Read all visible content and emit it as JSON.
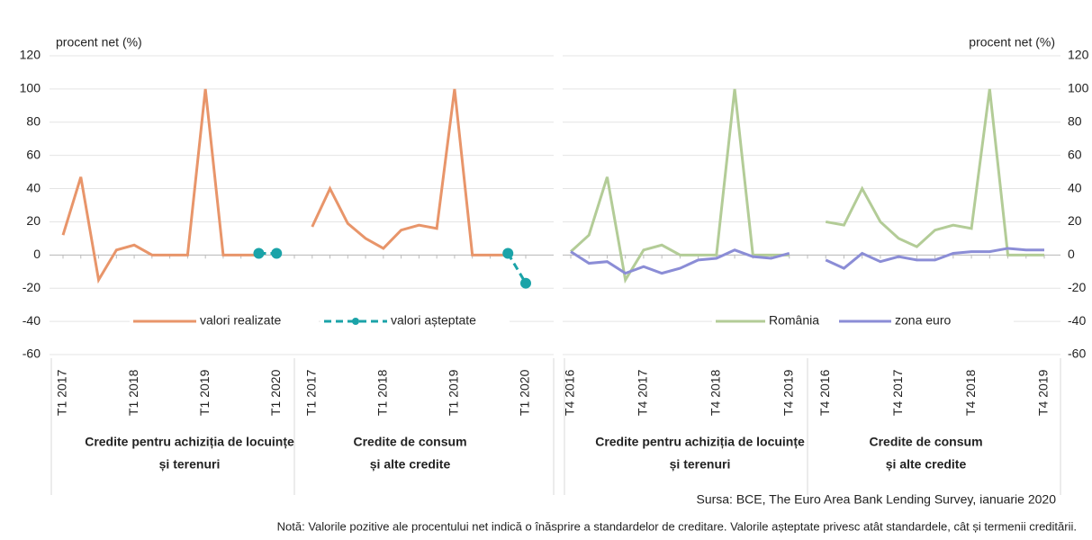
{
  "chart_data": [
    {
      "type": "line",
      "y_label": "procent net (%)",
      "categories": [
        "T1 2017",
        null,
        null,
        null,
        "T1 2018",
        null,
        null,
        null,
        "T1 2019",
        null,
        null,
        null,
        "T1 2020",
        null,
        "T1 2017",
        null,
        null,
        null,
        "T1 2018",
        null,
        null,
        null,
        "T1 2019",
        null,
        null,
        null,
        "T1 2020"
      ],
      "groups": [
        {
          "lines": [
            "Credite pentru achiziția de locuințe",
            "și terenuri"
          ]
        },
        {
          "lines": [
            "Credite de consum",
            "și alte credite"
          ]
        }
      ],
      "series": [
        {
          "name": "valori realizate",
          "color": "#e8956a",
          "dashed": false,
          "markers": false,
          "values": [
            12,
            47,
            -15,
            3,
            6,
            0,
            0,
            0,
            100,
            0,
            0,
            0,
            null,
            null,
            17,
            40,
            19,
            10,
            4,
            15,
            18,
            16,
            100,
            0,
            0,
            0,
            null
          ]
        },
        {
          "name": "valori așteptate",
          "color": "#1ba3a8",
          "dashed": true,
          "markers": true,
          "values": [
            null,
            null,
            null,
            null,
            null,
            null,
            null,
            null,
            null,
            null,
            null,
            1,
            1,
            null,
            null,
            null,
            null,
            null,
            null,
            null,
            null,
            null,
            null,
            null,
            null,
            1,
            -17
          ]
        }
      ],
      "ylim": [
        -60,
        120
      ],
      "yticks": [
        -60,
        -40,
        -20,
        0,
        20,
        40,
        60,
        80,
        100,
        120
      ],
      "y_axis_side": "left",
      "grid": true
    },
    {
      "type": "line",
      "y_label": "procent net (%)",
      "categories": [
        "T4 2016",
        null,
        null,
        null,
        "T4 2017",
        null,
        null,
        null,
        "T4 2018",
        null,
        null,
        null,
        "T4 2019",
        null,
        "T4 2016",
        null,
        null,
        null,
        "T4 2017",
        null,
        null,
        null,
        "T4 2018",
        null,
        null,
        null,
        "T4 2019"
      ],
      "groups": [
        {
          "lines": [
            "Credite pentru achiziția de locuințe",
            "și terenuri"
          ]
        },
        {
          "lines": [
            "Credite de consum",
            "și alte credite"
          ]
        }
      ],
      "series": [
        {
          "name": "România",
          "color": "#b3cc97",
          "dashed": false,
          "markers": false,
          "values": [
            2,
            12,
            47,
            -15,
            3,
            6,
            0,
            0,
            0,
            100,
            0,
            0,
            0,
            null,
            20,
            18,
            40,
            20,
            10,
            5,
            15,
            18,
            16,
            100,
            0,
            0,
            0
          ]
        },
        {
          "name": "zona euro",
          "color": "#8b8dd6",
          "dashed": false,
          "markers": false,
          "values": [
            2,
            -5,
            -4,
            -11,
            -7,
            -11,
            -8,
            -3,
            -2,
            3,
            -1,
            -2,
            1,
            null,
            -3,
            -8,
            1,
            -4,
            -1,
            -3,
            -3,
            1,
            2,
            2,
            4,
            3,
            3
          ]
        }
      ],
      "ylim": [
        -60,
        120
      ],
      "yticks": [
        -60,
        -40,
        -20,
        0,
        20,
        40,
        60,
        80,
        100,
        120
      ],
      "y_axis_side": "right",
      "grid": true
    }
  ],
  "source": "Sursa: BCE, The Euro Area Bank Lending Survey, ianuarie 2020",
  "note": "Notă: Valorile pozitive ale procentului net indică o înăsprire a standardelor de creditare. Valorile așteptate privesc atât standardele, cât și termenii creditării."
}
